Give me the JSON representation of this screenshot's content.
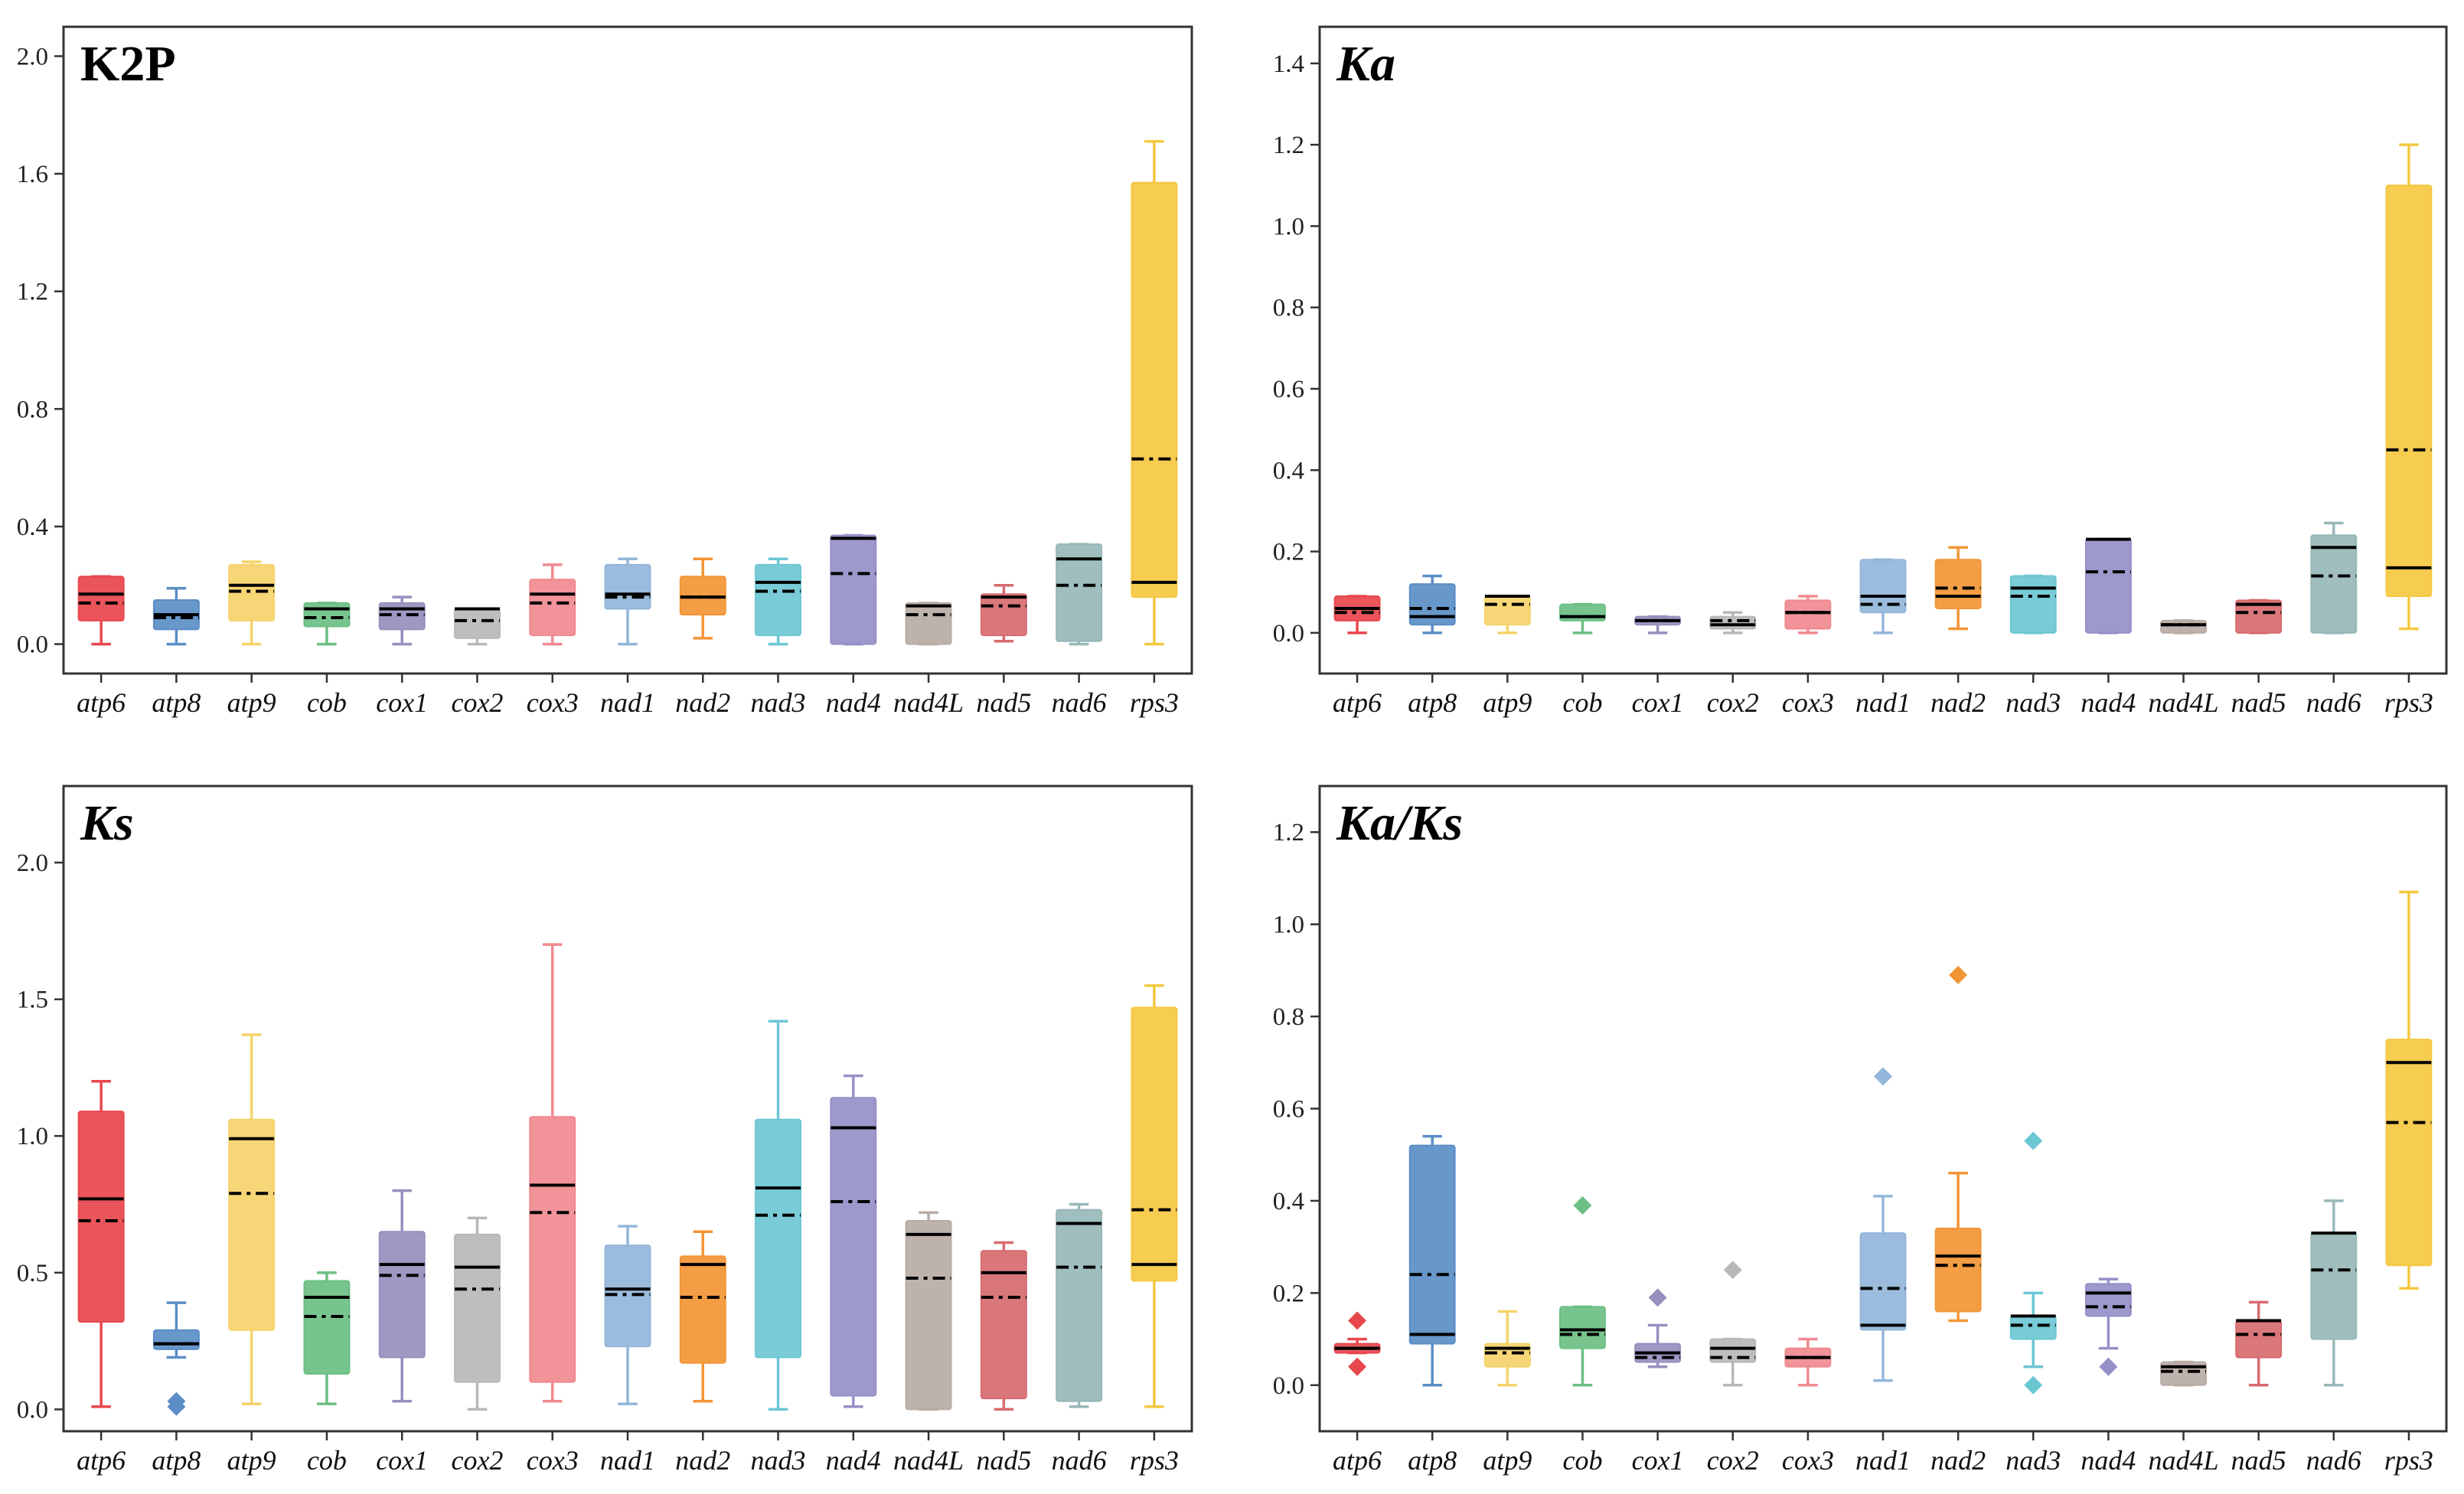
{
  "chart_data": [
    {
      "type": "box",
      "title": "K2P",
      "title_italic": false,
      "ylim": [
        -0.1,
        2.1
      ],
      "yticks": [
        "0.0",
        "0.4",
        "0.8",
        "1.2",
        "1.6",
        "2.0"
      ],
      "categories": [
        "atp6",
        "atp8",
        "atp9",
        "cob",
        "cox1",
        "cox2",
        "cox3",
        "nad1",
        "nad2",
        "nad3",
        "nad4",
        "nad4L",
        "nad5",
        "nad6",
        "rps3"
      ],
      "boxes": [
        {
          "min": 0.0,
          "q1": 0.08,
          "median": 0.17,
          "q3": 0.23,
          "max": 0.23,
          "mean": 0.14,
          "outliers": []
        },
        {
          "min": 0.0,
          "q1": 0.05,
          "median": 0.1,
          "q3": 0.15,
          "max": 0.19,
          "mean": 0.09,
          "outliers": []
        },
        {
          "min": 0.0,
          "q1": 0.08,
          "median": 0.2,
          "q3": 0.27,
          "max": 0.28,
          "mean": 0.18,
          "outliers": []
        },
        {
          "min": 0.0,
          "q1": 0.06,
          "median": 0.12,
          "q3": 0.14,
          "max": 0.14,
          "mean": 0.09,
          "outliers": []
        },
        {
          "min": 0.0,
          "q1": 0.05,
          "median": 0.12,
          "q3": 0.14,
          "max": 0.16,
          "mean": 0.1,
          "outliers": []
        },
        {
          "min": 0.0,
          "q1": 0.02,
          "median": 0.12,
          "q3": 0.12,
          "max": 0.12,
          "mean": 0.08,
          "outliers": []
        },
        {
          "min": 0.0,
          "q1": 0.03,
          "median": 0.17,
          "q3": 0.22,
          "max": 0.27,
          "mean": 0.14,
          "outliers": []
        },
        {
          "min": 0.0,
          "q1": 0.12,
          "median": 0.17,
          "q3": 0.27,
          "max": 0.29,
          "mean": 0.16,
          "outliers": []
        },
        {
          "min": 0.02,
          "q1": 0.1,
          "median": 0.16,
          "q3": 0.23,
          "max": 0.29,
          "mean": 0.16,
          "outliers": []
        },
        {
          "min": 0.0,
          "q1": 0.03,
          "median": 0.21,
          "q3": 0.27,
          "max": 0.29,
          "mean": 0.18,
          "outliers": []
        },
        {
          "min": 0.0,
          "q1": 0.0,
          "median": 0.36,
          "q3": 0.37,
          "max": 0.37,
          "mean": 0.24,
          "outliers": []
        },
        {
          "min": 0.0,
          "q1": 0.0,
          "median": 0.13,
          "q3": 0.14,
          "max": 0.14,
          "mean": 0.1,
          "outliers": []
        },
        {
          "min": 0.01,
          "q1": 0.03,
          "median": 0.16,
          "q3": 0.17,
          "max": 0.2,
          "mean": 0.13,
          "outliers": []
        },
        {
          "min": 0.0,
          "q1": 0.01,
          "median": 0.29,
          "q3": 0.34,
          "max": 0.34,
          "mean": 0.2,
          "outliers": []
        },
        {
          "min": 0.0,
          "q1": 0.16,
          "median": 0.21,
          "q3": 1.57,
          "max": 1.71,
          "mean": 0.63,
          "outliers": []
        }
      ]
    },
    {
      "type": "box",
      "title": "Ka",
      "title_italic": true,
      "ylim": [
        -0.1,
        1.49
      ],
      "yticks": [
        "0.0",
        "0.2",
        "0.4",
        "0.6",
        "0.8",
        "1.0",
        "1.2",
        "1.4"
      ],
      "categories": [
        "atp6",
        "atp8",
        "atp9",
        "cob",
        "cox1",
        "cox2",
        "cox3",
        "nad1",
        "nad2",
        "nad3",
        "nad4",
        "nad4L",
        "nad5",
        "nad6",
        "rps3"
      ],
      "boxes": [
        {
          "min": 0.0,
          "q1": 0.03,
          "median": 0.06,
          "q3": 0.09,
          "max": 0.09,
          "mean": 0.05,
          "outliers": []
        },
        {
          "min": 0.0,
          "q1": 0.02,
          "median": 0.04,
          "q3": 0.12,
          "max": 0.14,
          "mean": 0.06,
          "outliers": []
        },
        {
          "min": 0.0,
          "q1": 0.02,
          "median": 0.09,
          "q3": 0.09,
          "max": 0.09,
          "mean": 0.07,
          "outliers": []
        },
        {
          "min": 0.0,
          "q1": 0.03,
          "median": 0.04,
          "q3": 0.07,
          "max": 0.07,
          "mean": 0.04,
          "outliers": []
        },
        {
          "min": 0.0,
          "q1": 0.02,
          "median": 0.03,
          "q3": 0.04,
          "max": 0.04,
          "mean": 0.03,
          "outliers": []
        },
        {
          "min": 0.0,
          "q1": 0.01,
          "median": 0.02,
          "q3": 0.04,
          "max": 0.05,
          "mean": 0.03,
          "outliers": []
        },
        {
          "min": 0.0,
          "q1": 0.01,
          "median": 0.05,
          "q3": 0.08,
          "max": 0.09,
          "mean": 0.05,
          "outliers": []
        },
        {
          "min": 0.0,
          "q1": 0.05,
          "median": 0.09,
          "q3": 0.18,
          "max": 0.18,
          "mean": 0.07,
          "outliers": []
        },
        {
          "min": 0.01,
          "q1": 0.06,
          "median": 0.09,
          "q3": 0.18,
          "max": 0.21,
          "mean": 0.11,
          "outliers": []
        },
        {
          "min": 0.0,
          "q1": 0.0,
          "median": 0.11,
          "q3": 0.14,
          "max": 0.14,
          "mean": 0.09,
          "outliers": []
        },
        {
          "min": 0.0,
          "q1": 0.0,
          "median": 0.23,
          "q3": 0.23,
          "max": 0.23,
          "mean": 0.15,
          "outliers": []
        },
        {
          "min": 0.0,
          "q1": 0.0,
          "median": 0.02,
          "q3": 0.03,
          "max": 0.03,
          "mean": 0.02,
          "outliers": []
        },
        {
          "min": 0.0,
          "q1": 0.0,
          "median": 0.07,
          "q3": 0.08,
          "max": 0.08,
          "mean": 0.05,
          "outliers": []
        },
        {
          "min": 0.0,
          "q1": 0.0,
          "median": 0.21,
          "q3": 0.24,
          "max": 0.27,
          "mean": 0.14,
          "outliers": []
        },
        {
          "min": 0.01,
          "q1": 0.09,
          "median": 0.16,
          "q3": 1.1,
          "max": 1.2,
          "mean": 0.45,
          "outliers": []
        }
      ]
    },
    {
      "type": "box",
      "title": "Ks",
      "title_italic": true,
      "ylim": [
        -0.08,
        2.28
      ],
      "yticks": [
        "0.0",
        "0.5",
        "1.0",
        "1.5",
        "2.0"
      ],
      "categories": [
        "atp6",
        "atp8",
        "atp9",
        "cob",
        "cox1",
        "cox2",
        "cox3",
        "nad1",
        "nad2",
        "nad3",
        "nad4",
        "nad4L",
        "nad5",
        "nad6",
        "rps3"
      ],
      "boxes": [
        {
          "min": 0.01,
          "q1": 0.32,
          "median": 0.77,
          "q3": 1.09,
          "max": 1.2,
          "mean": 0.69,
          "outliers": []
        },
        {
          "min": 0.19,
          "q1": 0.22,
          "median": 0.24,
          "q3": 0.29,
          "max": 0.39,
          "mean": 0.24,
          "outliers": [
            0.03,
            0.01
          ]
        },
        {
          "min": 0.02,
          "q1": 0.29,
          "median": 0.99,
          "q3": 1.06,
          "max": 1.37,
          "mean": 0.79,
          "outliers": []
        },
        {
          "min": 0.02,
          "q1": 0.13,
          "median": 0.41,
          "q3": 0.47,
          "max": 0.5,
          "mean": 0.34,
          "outliers": []
        },
        {
          "min": 0.03,
          "q1": 0.19,
          "median": 0.53,
          "q3": 0.65,
          "max": 0.8,
          "mean": 0.49,
          "outliers": []
        },
        {
          "min": 0.0,
          "q1": 0.1,
          "median": 0.52,
          "q3": 0.64,
          "max": 0.7,
          "mean": 0.44,
          "outliers": []
        },
        {
          "min": 0.03,
          "q1": 0.1,
          "median": 0.82,
          "q3": 1.07,
          "max": 1.7,
          "mean": 0.72,
          "outliers": []
        },
        {
          "min": 0.02,
          "q1": 0.23,
          "median": 0.44,
          "q3": 0.6,
          "max": 0.67,
          "mean": 0.42,
          "outliers": []
        },
        {
          "min": 0.03,
          "q1": 0.17,
          "median": 0.53,
          "q3": 0.56,
          "max": 0.65,
          "mean": 0.41,
          "outliers": []
        },
        {
          "min": 0.0,
          "q1": 0.19,
          "median": 0.81,
          "q3": 1.06,
          "max": 1.42,
          "mean": 0.71,
          "outliers": []
        },
        {
          "min": 0.01,
          "q1": 0.05,
          "median": 1.03,
          "q3": 1.14,
          "max": 1.22,
          "mean": 0.76,
          "outliers": []
        },
        {
          "min": 0.0,
          "q1": 0.0,
          "median": 0.64,
          "q3": 0.69,
          "max": 0.72,
          "mean": 0.48,
          "outliers": []
        },
        {
          "min": 0.0,
          "q1": 0.04,
          "median": 0.5,
          "q3": 0.58,
          "max": 0.61,
          "mean": 0.41,
          "outliers": []
        },
        {
          "min": 0.01,
          "q1": 0.03,
          "median": 0.68,
          "q3": 0.73,
          "max": 0.75,
          "mean": 0.52,
          "outliers": []
        },
        {
          "min": 0.01,
          "q1": 0.47,
          "median": 0.53,
          "q3": 1.47,
          "max": 1.55,
          "mean": 0.73,
          "outliers": []
        }
      ]
    },
    {
      "type": "box",
      "title": "Ka/Ks",
      "title_italic": true,
      "ylim": [
        -0.1,
        1.3
      ],
      "yticks": [
        "0.0",
        "0.2",
        "0.4",
        "0.6",
        "0.8",
        "1.0",
        "1.2"
      ],
      "categories": [
        "atp6",
        "atp8",
        "atp9",
        "cob",
        "cox1",
        "cox2",
        "cox3",
        "nad1",
        "nad2",
        "nad3",
        "nad4",
        "nad4L",
        "nad5",
        "nad6",
        "rps3"
      ],
      "boxes": [
        {
          "min": 0.07,
          "q1": 0.07,
          "median": 0.08,
          "q3": 0.09,
          "max": 0.1,
          "mean": 0.08,
          "outliers": [
            0.14,
            0.04
          ]
        },
        {
          "min": 0.0,
          "q1": 0.09,
          "median": 0.11,
          "q3": 0.52,
          "max": 0.54,
          "mean": 0.24,
          "outliers": []
        },
        {
          "min": 0.0,
          "q1": 0.04,
          "median": 0.08,
          "q3": 0.09,
          "max": 0.16,
          "mean": 0.07,
          "outliers": []
        },
        {
          "min": 0.0,
          "q1": 0.08,
          "median": 0.12,
          "q3": 0.17,
          "max": 0.17,
          "mean": 0.11,
          "outliers": [
            0.39
          ]
        },
        {
          "min": 0.04,
          "q1": 0.05,
          "median": 0.07,
          "q3": 0.09,
          "max": 0.13,
          "mean": 0.06,
          "outliers": [
            0.19
          ]
        },
        {
          "min": 0.0,
          "q1": 0.05,
          "median": 0.08,
          "q3": 0.1,
          "max": 0.1,
          "mean": 0.06,
          "outliers": [
            0.25
          ]
        },
        {
          "min": 0.0,
          "q1": 0.04,
          "median": 0.06,
          "q3": 0.08,
          "max": 0.1,
          "mean": 0.06,
          "outliers": []
        },
        {
          "min": 0.01,
          "q1": 0.12,
          "median": 0.13,
          "q3": 0.33,
          "max": 0.41,
          "mean": 0.21,
          "outliers": [
            0.67
          ]
        },
        {
          "min": 0.14,
          "q1": 0.16,
          "median": 0.28,
          "q3": 0.34,
          "max": 0.46,
          "mean": 0.26,
          "outliers": [
            0.89
          ]
        },
        {
          "min": 0.04,
          "q1": 0.1,
          "median": 0.15,
          "q3": 0.15,
          "max": 0.2,
          "mean": 0.13,
          "outliers": [
            0.53,
            0.0
          ]
        },
        {
          "min": 0.08,
          "q1": 0.15,
          "median": 0.2,
          "q3": 0.22,
          "max": 0.23,
          "mean": 0.17,
          "outliers": [
            0.04
          ]
        },
        {
          "min": 0.0,
          "q1": 0.0,
          "median": 0.04,
          "q3": 0.05,
          "max": 0.05,
          "mean": 0.03,
          "outliers": []
        },
        {
          "min": 0.0,
          "q1": 0.06,
          "median": 0.14,
          "q3": 0.14,
          "max": 0.18,
          "mean": 0.11,
          "outliers": []
        },
        {
          "min": 0.0,
          "q1": 0.1,
          "median": 0.33,
          "q3": 0.33,
          "max": 0.4,
          "mean": 0.25,
          "outliers": []
        },
        {
          "min": 0.21,
          "q1": 0.26,
          "median": 0.7,
          "q3": 0.75,
          "max": 1.07,
          "mean": 0.57,
          "outliers": []
        }
      ]
    }
  ],
  "colors": [
    "#e8474d",
    "#5b8ec6",
    "#f5d36a",
    "#6cbf84",
    "#9590be",
    "#b8b8b8",
    "#f08a8f",
    "#93b6da",
    "#f29535",
    "#6cc7d4",
    "#9590c8",
    "#b8aca5",
    "#d76b70",
    "#98b8b8",
    "#f5c842"
  ]
}
